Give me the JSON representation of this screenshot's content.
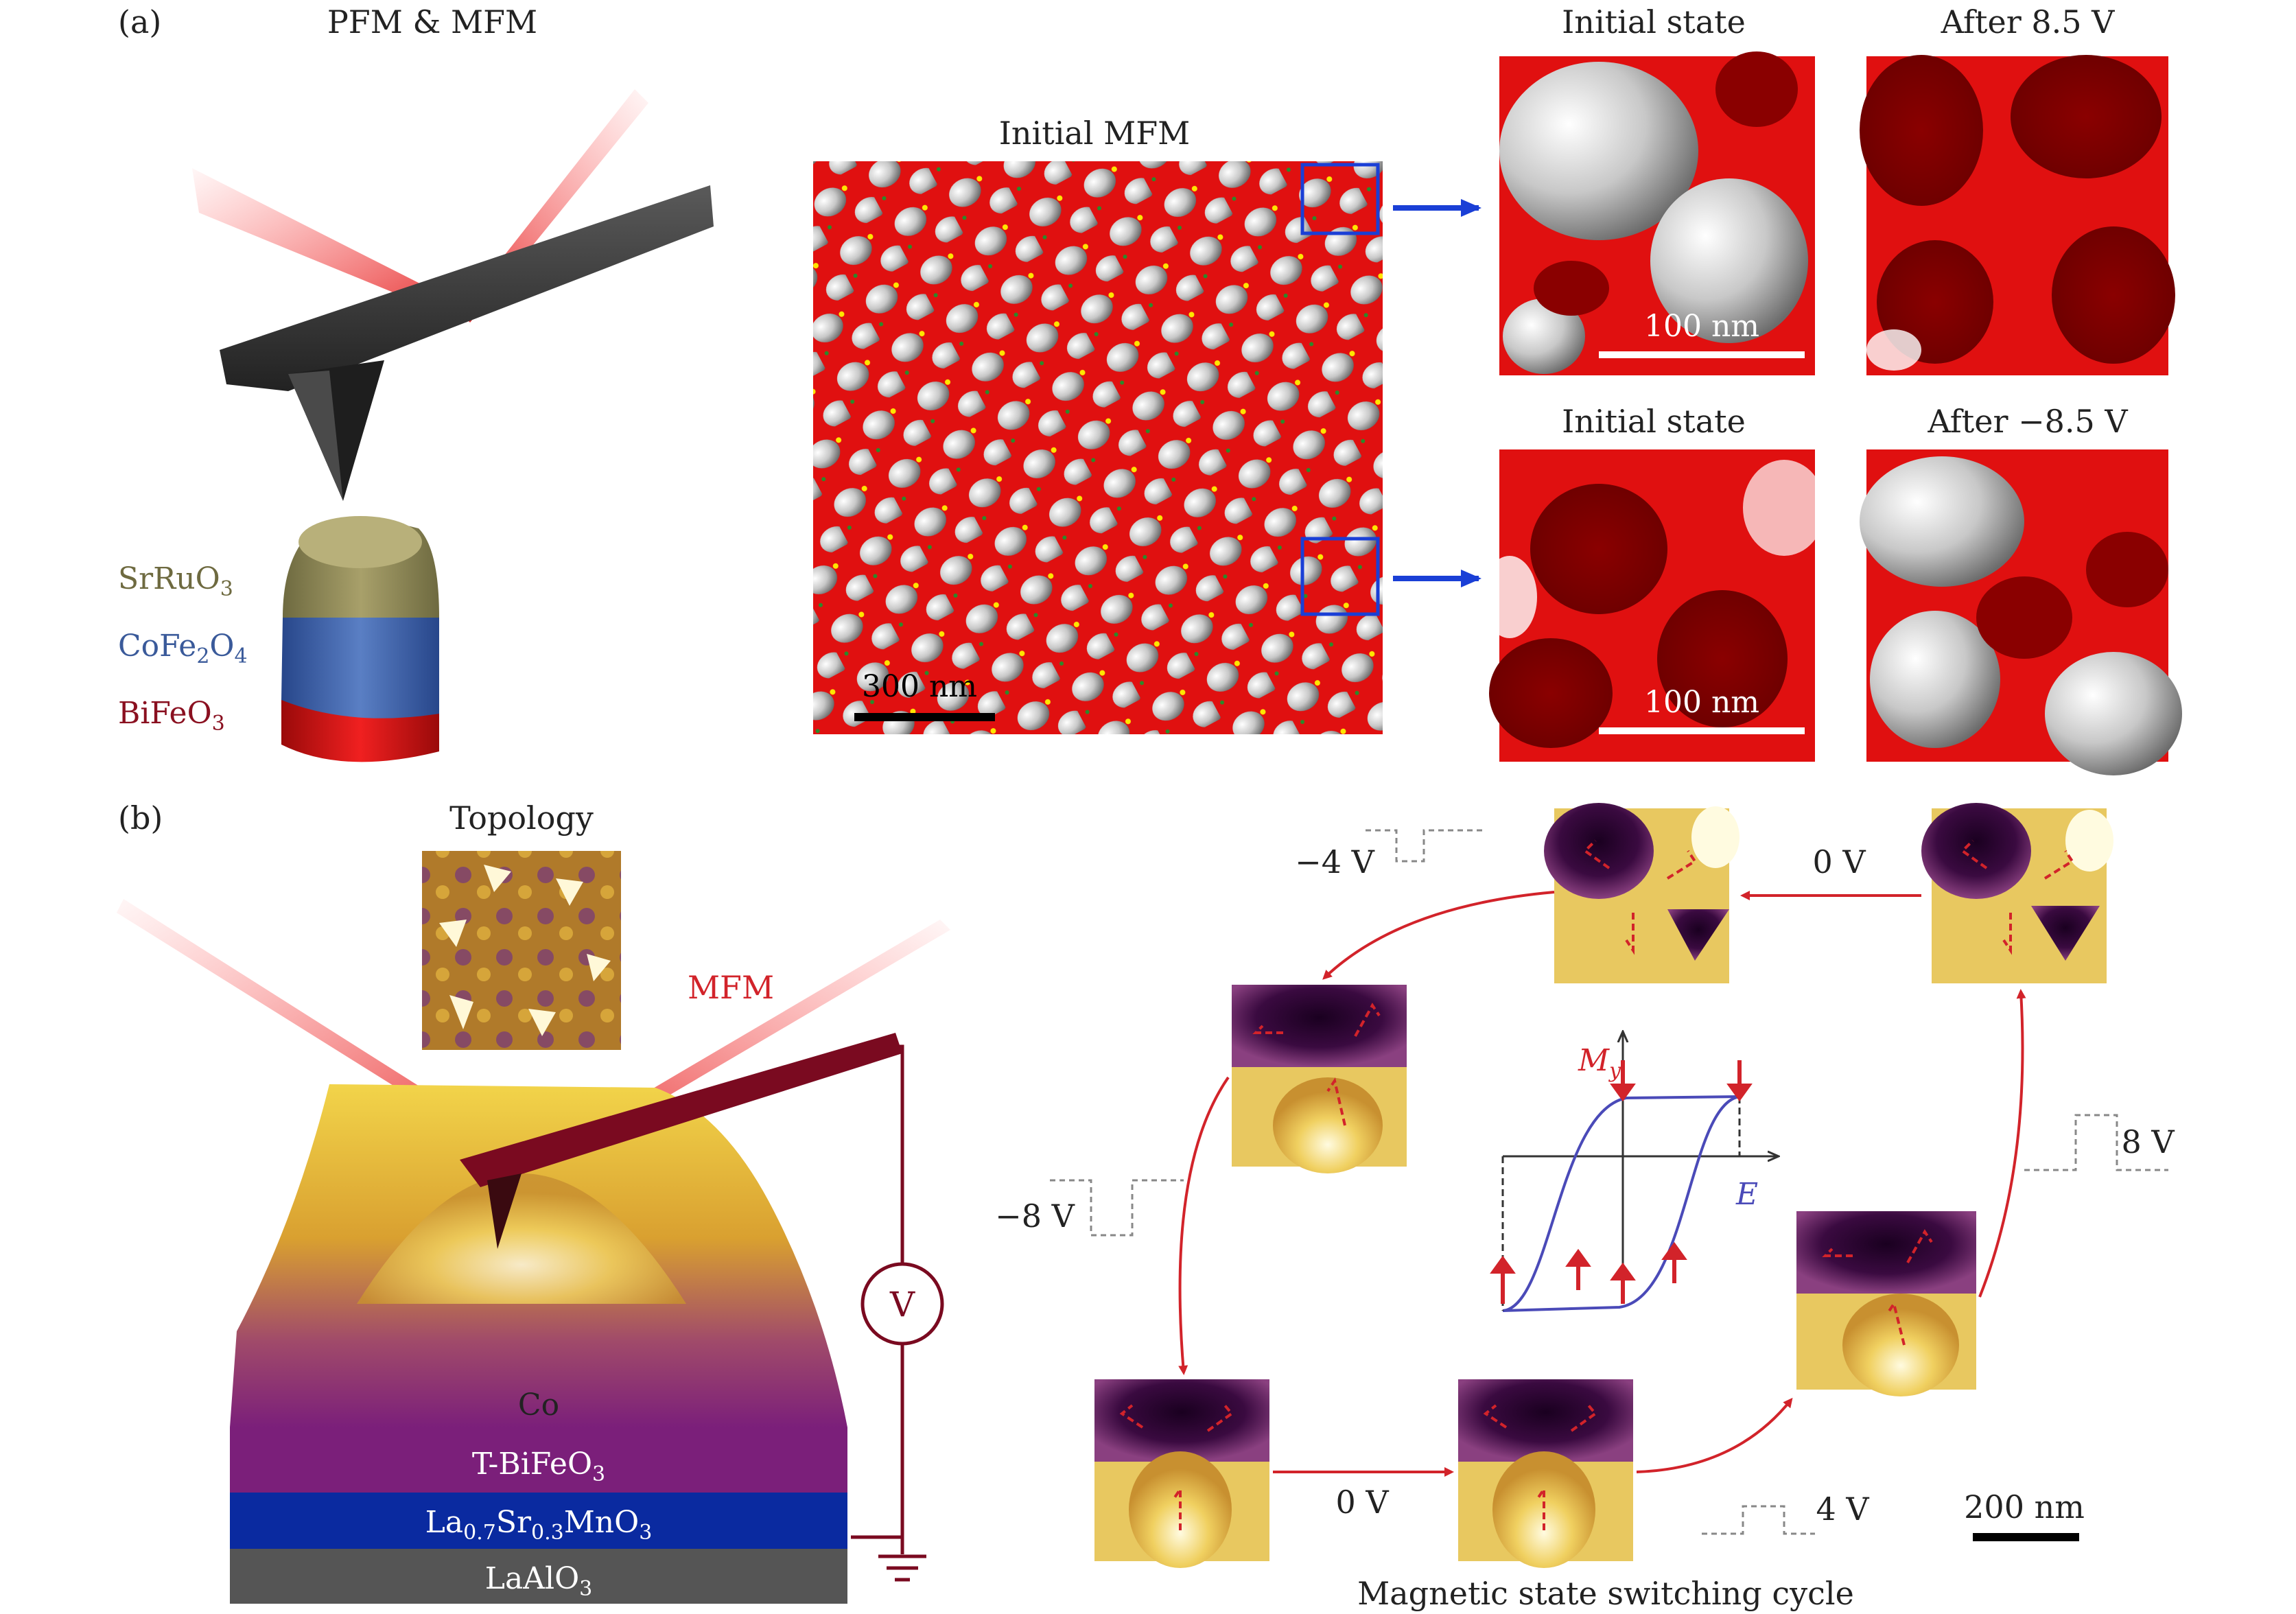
{
  "panel_a": {
    "tag": "(a)",
    "title": "PFM & MFM",
    "layers": {
      "sro_a": "SrRuO",
      "sro_b": "3",
      "cfo_a": "CoFe",
      "cfo_b": "2",
      "cfo_c": "O",
      "cfo_d": "4",
      "bfo_a": "BiFeO",
      "bfo_b": "3"
    },
    "mfm_title": "Initial MFM",
    "scale_300": "300 nm",
    "top_left_title": "Initial state",
    "top_right_title": "After 8.5 V",
    "bottom_left_title": "Initial state",
    "bottom_right_title": "After −8.5 V",
    "scale_100_top": "100 nm",
    "scale_100_bottom": "100 nm"
  },
  "panel_b": {
    "tag": "(b)",
    "topology_title": "Topology",
    "mfm_label": "MFM",
    "voltmeter": "V",
    "layer_co": "Co",
    "layer_tbfo_a": "T-BiFeO",
    "layer_tbfo_b": "3",
    "layer_lsmo_a": "La",
    "layer_lsmo_b": "0.7",
    "layer_lsmo_c": "Sr",
    "layer_lsmo_d": "0.3",
    "layer_lsmo_e": "MnO",
    "layer_lsmo_f": "3",
    "layer_lao_a": "LaAlO",
    "layer_lao_b": "3",
    "v_minus4": "−4 V",
    "v_zero_top": "0 V",
    "v_minus8": "−8 V",
    "v_plus8": "8 V",
    "v_zero_bottom": "0 V",
    "v_plus4": "4 V",
    "hyst_y_a": "M",
    "hyst_y_b": "y",
    "hyst_x": "E",
    "scale_200": "200 nm",
    "caption": "Magnetic state switching cycle"
  },
  "colors": {
    "mfm_red": "#e01010",
    "dark_red": "#7a0000",
    "arrow_blue": "#1a3fd6",
    "cycle_red": "#d2232a",
    "hyst_blue": "#4a4ab8",
    "tip_gray": "#3a3a3a",
    "co_purple": "#7b1f7a",
    "lsmo_blue": "#0a2aa0",
    "lao_gray": "#555555"
  }
}
